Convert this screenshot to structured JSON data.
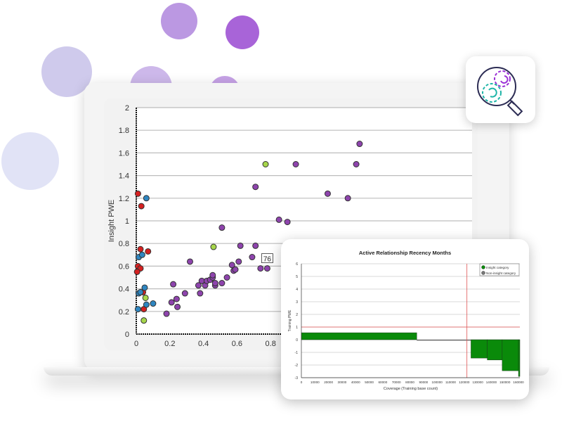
{
  "colors": {
    "accent_purple": "#8e3fb0",
    "accent_teal": "#1fb5a8",
    "insight_green": "#0a8a0a",
    "reference_red": "#e05555"
  },
  "icon": {
    "name": "magnifier-gears-icon"
  },
  "chart_data": [
    {
      "type": "scatter",
      "title": "",
      "xlabel": "",
      "ylabel": "Insight PWE",
      "xlim": [
        0,
        2
      ],
      "ylim": [
        0,
        2
      ],
      "grid": "horizontal",
      "x_ticks": [
        "0",
        "0.2",
        "0.4",
        "0.6",
        "0.8"
      ],
      "y_ticks": [
        "0",
        "0.2",
        "0.4",
        "0.6",
        "0.8",
        "1",
        "1.2",
        "1.4",
        "1.6",
        "1.8",
        "2"
      ],
      "annotation": {
        "text": "76",
        "x": 0.78,
        "y": 0.58
      },
      "series": [
        {
          "color": "#d42020",
          "points": [
            [
              0.01,
              1.24
            ],
            [
              0.03,
              1.13
            ],
            [
              0.025,
              0.75
            ],
            [
              0.07,
              0.73
            ],
            [
              0.01,
              0.6
            ],
            [
              0.025,
              0.58
            ],
            [
              0.005,
              0.55
            ],
            [
              0.04,
              0.37
            ],
            [
              0.045,
              0.22
            ]
          ]
        },
        {
          "color": "#2e86c1",
          "points": [
            [
              0.06,
              1.2
            ],
            [
              0.015,
              0.68
            ],
            [
              0.035,
              0.7
            ],
            [
              0.05,
              0.41
            ],
            [
              0.015,
              0.36
            ],
            [
              0.025,
              0.37
            ],
            [
              0.01,
              0.22
            ],
            [
              0.06,
              0.26
            ],
            [
              0.1,
              0.27
            ]
          ]
        },
        {
          "color": "#a6d64a",
          "points": [
            [
              0.055,
              0.32
            ],
            [
              0.045,
              0.12
            ],
            [
              0.46,
              0.77
            ],
            [
              0.77,
              1.5
            ]
          ]
        },
        {
          "color": "#8e44ad",
          "points": [
            [
              0.18,
              0.18
            ],
            [
              0.21,
              0.28
            ],
            [
              0.22,
              0.44
            ],
            [
              0.24,
              0.31
            ],
            [
              0.245,
              0.24
            ],
            [
              0.29,
              0.36
            ],
            [
              0.32,
              0.64
            ],
            [
              0.37,
              0.43
            ],
            [
              0.38,
              0.36
            ],
            [
              0.39,
              0.47
            ],
            [
              0.41,
              0.43
            ],
            [
              0.42,
              0.47
            ],
            [
              0.44,
              0.48
            ],
            [
              0.455,
              0.5
            ],
            [
              0.455,
              0.52
            ],
            [
              0.47,
              0.43
            ],
            [
              0.47,
              0.45
            ],
            [
              0.51,
              0.94
            ],
            [
              0.51,
              0.45
            ],
            [
              0.54,
              0.5
            ],
            [
              0.57,
              0.61
            ],
            [
              0.58,
              0.56
            ],
            [
              0.59,
              0.57
            ],
            [
              0.61,
              0.64
            ],
            [
              0.62,
              0.78
            ],
            [
              0.69,
              0.68
            ],
            [
              0.71,
              0.78
            ],
            [
              0.71,
              1.3
            ],
            [
              0.74,
              0.58
            ],
            [
              0.78,
              0.58
            ],
            [
              0.85,
              1.01
            ],
            [
              0.9,
              0.99
            ],
            [
              0.95,
              1.5
            ],
            [
              1.14,
              1.24
            ],
            [
              1.26,
              1.2
            ],
            [
              1.31,
              1.5
            ],
            [
              1.33,
              1.68
            ]
          ]
        }
      ]
    },
    {
      "type": "bar",
      "title": "Active Relationship Recency Months",
      "xlabel": "Coverage (Training base count)",
      "ylabel": "Training PWE",
      "xlim": [
        0,
        161000
      ],
      "ylim": [
        -3,
        6
      ],
      "grid": "horizontal",
      "x_ticks": [
        "0",
        "10000",
        "20000",
        "30000",
        "40000",
        "50000",
        "60000",
        "70000",
        "80000",
        "90000",
        "100000",
        "110000",
        "120000",
        "130000",
        "140000",
        "150000",
        "160000"
      ],
      "y_ticks": [
        "-3",
        "-2",
        "-1",
        "0",
        "1",
        "2",
        "3",
        "4",
        "5",
        "6"
      ],
      "legend": {
        "placement": "top-right",
        "entries": [
          {
            "label": "Insight category",
            "color": "#0a8a0a"
          },
          {
            "label": "Non-insight category",
            "color": "#777777"
          }
        ]
      },
      "reference_lines": {
        "vertical_x": 122000,
        "horizontal_y": 1
      },
      "bars": [
        {
          "x0": 0,
          "x1": 85000,
          "value": 0.55,
          "category": "Insight category"
        },
        {
          "x0": 85000,
          "x1": 125000,
          "value": -0.05,
          "category": "Non-insight category"
        },
        {
          "x0": 125000,
          "x1": 137000,
          "value": -1.45,
          "category": "Insight category"
        },
        {
          "x0": 137000,
          "x1": 148000,
          "value": -1.6,
          "category": "Insight category"
        },
        {
          "x0": 148000,
          "x1": 160000,
          "value": -2.45,
          "category": "Insight category"
        },
        {
          "x0": 160000,
          "x1": 161000,
          "value": -2.9,
          "category": "Insight category"
        }
      ]
    }
  ]
}
